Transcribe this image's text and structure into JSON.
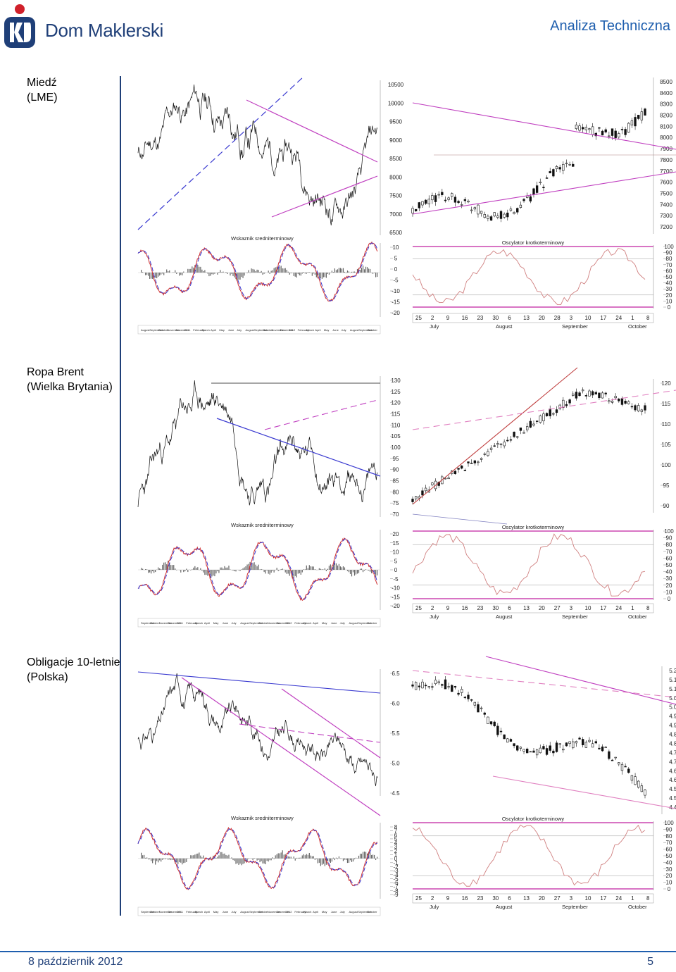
{
  "header": {
    "brand": "Dom Maklerski",
    "section": "Analiza Techniczna",
    "colors": {
      "brand_navy": "#1f3f78",
      "brand_blue": "#1f5fae",
      "brand_red": "#d0202a"
    }
  },
  "footer": {
    "date": "8 październik 2012",
    "page": "5"
  },
  "sections": [
    {
      "name": "Miedź",
      "sub": "(LME)"
    },
    {
      "name": "Ropa Brent",
      "sub": "(Wielka Brytania)"
    },
    {
      "name": "Obligacje 10-letnie",
      "sub": "(Polska)"
    }
  ],
  "panel_titles": {
    "macd": "Wskaznik sredniterminowy",
    "stoch": "Oscylator krotkoterminowy"
  },
  "icons": {
    "logo": "pko-logo-icon"
  },
  "chart_data": [
    {
      "id": "copper-long",
      "type": "line",
      "title": "",
      "yticks": [
        "10500",
        "10000",
        "9500",
        "9000",
        "8500",
        "8000",
        "7500",
        "7000",
        "6500"
      ],
      "ylim": [
        6400,
        10600
      ],
      "macd": {
        "type": "bar+line",
        "yticks": [
          "10",
          "5",
          "0",
          "-5",
          "-10",
          "-15",
          "-20"
        ],
        "ylim": [
          -21,
          12
        ]
      },
      "xlabels": [
        "August",
        "September",
        "October",
        "November",
        "December",
        "2011",
        "February",
        "March",
        "April",
        "May",
        "June",
        "July",
        "August",
        "September",
        "October",
        "November",
        "December",
        "2012",
        "February",
        "March",
        "April",
        "May",
        "June",
        "July",
        "August",
        "September",
        "October"
      ]
    },
    {
      "id": "copper-short",
      "type": "candlestick",
      "title": "",
      "yticks": [
        "8500",
        "8400",
        "8300",
        "8200",
        "8100",
        "8000",
        "7900",
        "7800",
        "7700",
        "7600",
        "7500",
        "7400",
        "7300",
        "7200"
      ],
      "ylim": [
        7150,
        8550
      ],
      "stoch": {
        "type": "line",
        "yticks": [
          "100",
          "90",
          "80",
          "70",
          "60",
          "50",
          "40",
          "30",
          "20",
          "10",
          "0"
        ],
        "ylim": [
          0,
          100
        ]
      },
      "day_ticks": [
        "25",
        "2",
        "9",
        "16",
        "23",
        "30",
        "6",
        "13",
        "20",
        "28",
        "3",
        "10",
        "17",
        "24",
        "1",
        "8"
      ],
      "months": [
        "July",
        "August",
        "September",
        "October"
      ]
    },
    {
      "id": "brent-long",
      "type": "line",
      "title": "",
      "yticks": [
        "130",
        "125",
        "120",
        "115",
        "110",
        "105",
        "100",
        "95",
        "90",
        "85",
        "80",
        "75",
        "70"
      ],
      "ylim": [
        68,
        132
      ],
      "macd": {
        "type": "bar+line",
        "yticks": [
          "20",
          "15",
          "10",
          "5",
          "0",
          "-5",
          "-10",
          "-15",
          "-20"
        ],
        "ylim": [
          -22,
          22
        ]
      },
      "xlabels": [
        "September",
        "October",
        "November",
        "December",
        "2011",
        "February",
        "March",
        "April",
        "May",
        "June",
        "July",
        "August",
        "September",
        "October",
        "November",
        "December",
        "2012",
        "February",
        "March",
        "April",
        "May",
        "June",
        "July",
        "August",
        "September",
        "October"
      ]
    },
    {
      "id": "brent-short",
      "type": "candlestick",
      "title": "",
      "yticks": [
        "120",
        "115",
        "110",
        "105",
        "100",
        "95",
        "90"
      ],
      "ylim": [
        88,
        122
      ],
      "stoch": {
        "type": "line",
        "yticks": [
          "100",
          "90",
          "80",
          "70",
          "60",
          "50",
          "40",
          "30",
          "20",
          "10",
          "0"
        ],
        "ylim": [
          0,
          100
        ]
      },
      "day_ticks": [
        "25",
        "2",
        "9",
        "16",
        "23",
        "30",
        "6",
        "13",
        "20",
        "27",
        "3",
        "10",
        "17",
        "24",
        "1",
        "8"
      ],
      "months": [
        "July",
        "August",
        "September",
        "October"
      ]
    },
    {
      "id": "pl10y-long",
      "type": "line",
      "title": "",
      "yticks": [
        "6.5",
        "6.0",
        "5.5",
        "5.0",
        "4.5"
      ],
      "ylim": [
        4.4,
        6.6
      ],
      "macd": {
        "type": "bar+line",
        "yticks": [
          "8",
          "7",
          "6",
          "5",
          "4",
          "3",
          "2",
          "1",
          "0",
          "-1",
          "-2",
          "-3",
          "-4",
          "-5",
          "-6",
          "-7",
          "-8",
          "-9"
        ],
        "ylim": [
          -9.5,
          8.5
        ]
      },
      "xlabels": [
        "September",
        "October",
        "November",
        "December",
        "2011",
        "February",
        "March",
        "April",
        "May",
        "June",
        "July",
        "August",
        "September",
        "October",
        "November",
        "December",
        "2012",
        "February",
        "March",
        "April",
        "May",
        "June",
        "July",
        "August",
        "September",
        "October"
      ]
    },
    {
      "id": "pl10y-short",
      "type": "candlestick",
      "title": "",
      "yticks": [
        "5.20",
        "5.15",
        "5.10",
        "5.05",
        "5.00",
        "4.95",
        "4.90",
        "4.85",
        "4.80",
        "4.75",
        "4.70",
        "4.65",
        "4.60",
        "4.55",
        "4.50",
        "4.45"
      ],
      "ylim": [
        4.43,
        5.22
      ],
      "stoch": {
        "type": "line",
        "yticks": [
          "100",
          "90",
          "80",
          "70",
          "60",
          "50",
          "40",
          "30",
          "20",
          "10",
          "0"
        ],
        "ylim": [
          0,
          100
        ]
      },
      "day_ticks": [
        "25",
        "2",
        "9",
        "16",
        "23",
        "30",
        "6",
        "13",
        "20",
        "27",
        "3",
        "10",
        "17",
        "24",
        "1",
        "8"
      ],
      "months": [
        "July",
        "August",
        "September",
        "October"
      ]
    }
  ]
}
